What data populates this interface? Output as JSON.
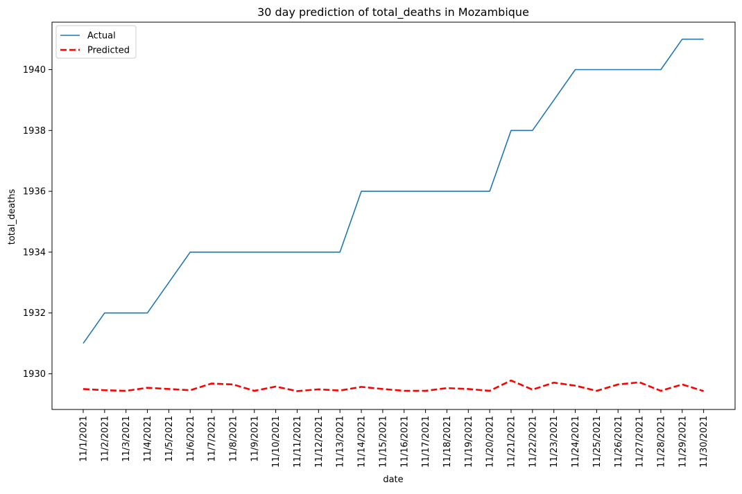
{
  "chart_data": {
    "type": "line",
    "title": "30 day prediction of total_deaths in Mozambique",
    "xlabel": "date",
    "ylabel": "total_deaths",
    "categories": [
      "11/1/2021",
      "11/2/2021",
      "11/3/2021",
      "11/4/2021",
      "11/5/2021",
      "11/6/2021",
      "11/7/2021",
      "11/8/2021",
      "11/9/2021",
      "11/10/2021",
      "11/11/2021",
      "11/12/2021",
      "11/13/2021",
      "11/14/2021",
      "11/15/2021",
      "11/16/2021",
      "11/17/2021",
      "11/18/2021",
      "11/19/2021",
      "11/20/2021",
      "11/21/2021",
      "11/22/2021",
      "11/23/2021",
      "11/24/2021",
      "11/25/2021",
      "11/26/2021",
      "11/27/2021",
      "11/28/2021",
      "11/29/2021",
      "11/30/2021"
    ],
    "ylim": [
      1928.9,
      1941.25
    ],
    "yticks": [
      1930,
      1932,
      1934,
      1936,
      1938,
      1940
    ],
    "grid": false,
    "legend_position": "top-left",
    "series": [
      {
        "name": "Actual",
        "color": "#1f77b4",
        "style": "solid",
        "values": [
          1931,
          1932,
          1932,
          1932,
          1933,
          1934,
          1934,
          1934,
          1934,
          1934,
          1934,
          1934,
          1934,
          1936,
          1936,
          1936,
          1936,
          1936,
          1936,
          1936,
          1938,
          1938,
          1939,
          1940,
          1940,
          1940,
          1940,
          1940,
          1941,
          1941
        ]
      },
      {
        "name": "Predicted",
        "color": "#ff0000",
        "style": "dashed",
        "values": [
          1929.5,
          1929.46,
          1929.44,
          1929.54,
          1929.5,
          1929.46,
          1929.68,
          1929.65,
          1929.44,
          1929.58,
          1929.43,
          1929.49,
          1929.45,
          1929.57,
          1929.5,
          1929.44,
          1929.44,
          1929.53,
          1929.5,
          1929.44,
          1929.78,
          1929.48,
          1929.71,
          1929.61,
          1929.44,
          1929.65,
          1929.72,
          1929.44,
          1929.65,
          1929.43
        ]
      }
    ]
  }
}
